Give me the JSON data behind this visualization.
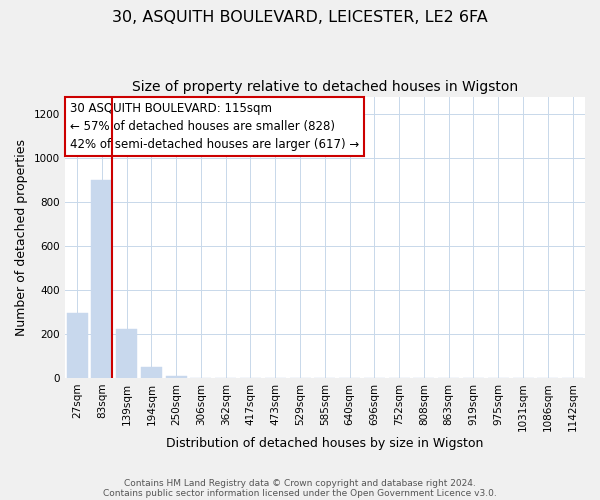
{
  "title": "30, ASQUITH BOULEVARD, LEICESTER, LE2 6FA",
  "subtitle": "Size of property relative to detached houses in Wigston",
  "xlabel": "Distribution of detached houses by size in Wigston",
  "ylabel": "Number of detached properties",
  "bar_labels": [
    "27sqm",
    "83sqm",
    "139sqm",
    "194sqm",
    "250sqm",
    "306sqm",
    "362sqm",
    "417sqm",
    "473sqm",
    "529sqm",
    "585sqm",
    "640sqm",
    "696sqm",
    "752sqm",
    "808sqm",
    "863sqm",
    "919sqm",
    "975sqm",
    "1031sqm",
    "1086sqm",
    "1142sqm"
  ],
  "bar_heights": [
    295,
    900,
    220,
    50,
    10,
    0,
    0,
    0,
    0,
    0,
    0,
    0,
    0,
    0,
    0,
    0,
    0,
    0,
    0,
    0,
    0
  ],
  "bar_color": "#c8d8ed",
  "marker_bar_idx": 1,
  "marker_color": "#cc0000",
  "annotation_title": "30 ASQUITH BOULEVARD: 115sqm",
  "annotation_line1": "← 57% of detached houses are smaller (828)",
  "annotation_line2": "42% of semi-detached houses are larger (617) →",
  "ylim": [
    0,
    1280
  ],
  "yticks": [
    0,
    200,
    400,
    600,
    800,
    1000,
    1200
  ],
  "footer1": "Contains HM Land Registry data © Crown copyright and database right 2024.",
  "footer2": "Contains public sector information licensed under the Open Government Licence v3.0.",
  "bg_color": "#f0f0f0",
  "plot_bg_color": "#ffffff",
  "grid_color": "#c8d8ea",
  "title_fontsize": 11.5,
  "subtitle_fontsize": 10,
  "axis_label_fontsize": 9,
  "tick_fontsize": 7.5,
  "footer_fontsize": 6.5
}
